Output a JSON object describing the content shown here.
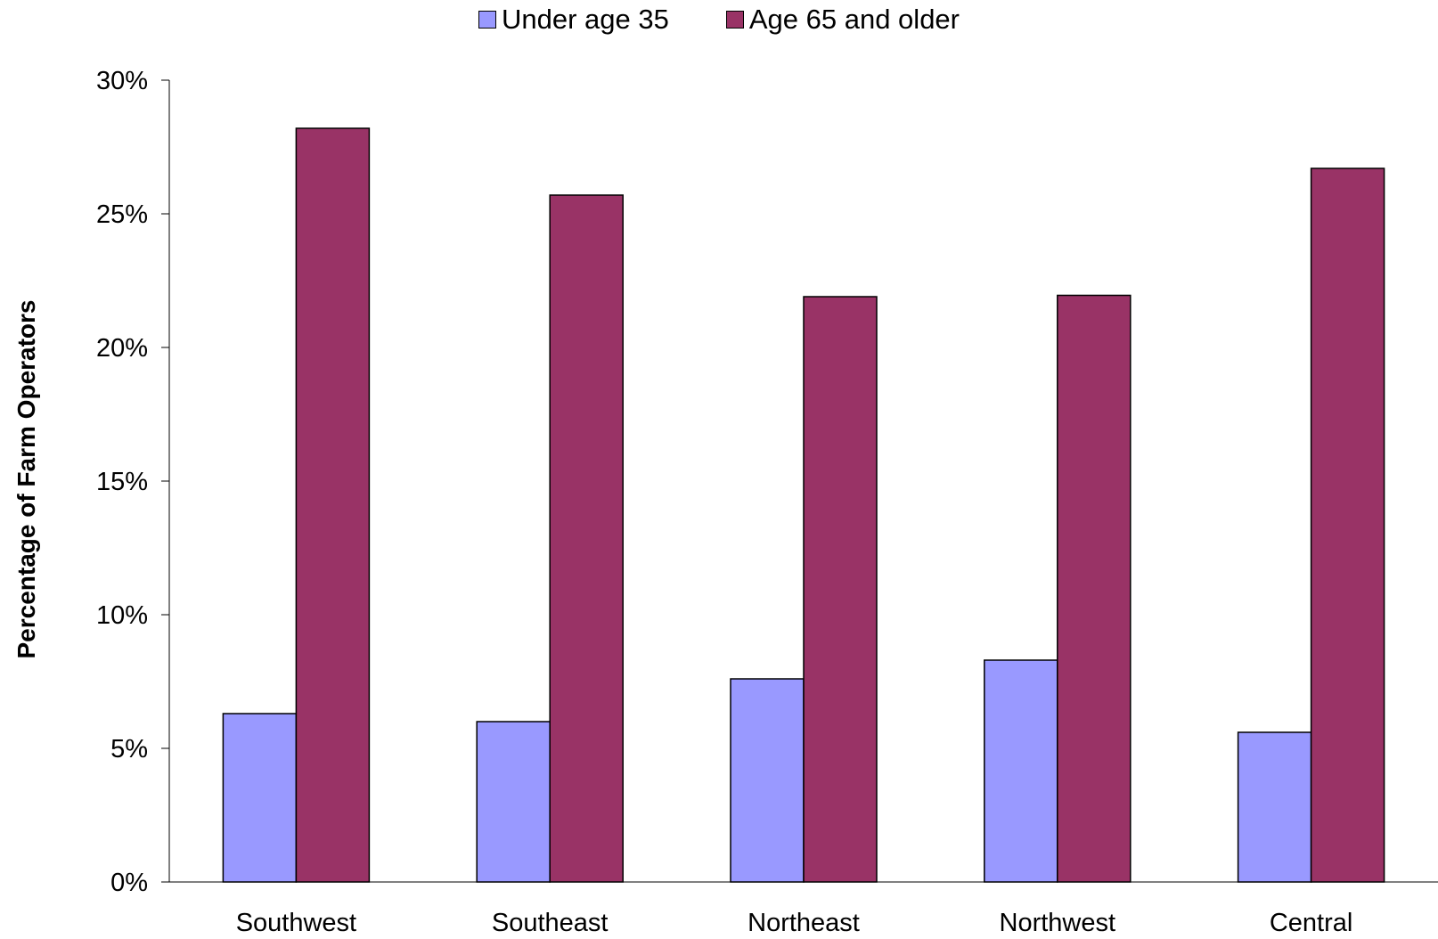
{
  "chart_data": {
    "type": "bar",
    "title": "",
    "xlabel": "",
    "ylabel": "Percentage of Farm Operators",
    "categories": [
      "Southwest",
      "Southeast",
      "Northeast",
      "Northwest",
      "Central"
    ],
    "series": [
      {
        "name": "Under age 35",
        "color": "#9999FF",
        "values": [
          6.3,
          6.0,
          7.6,
          8.3,
          5.6
        ]
      },
      {
        "name": "Age 65 and older",
        "color": "#993366",
        "values": [
          28.2,
          25.7,
          21.9,
          21.95,
          26.7
        ]
      }
    ],
    "ylim": [
      0,
      30
    ],
    "yticks": [
      0,
      5,
      10,
      15,
      20,
      25,
      30
    ],
    "ytick_labels": [
      "0%",
      "5%",
      "10%",
      "15%",
      "20%",
      "25%",
      "30%"
    ],
    "grid": false,
    "legend_position": "top-center"
  }
}
